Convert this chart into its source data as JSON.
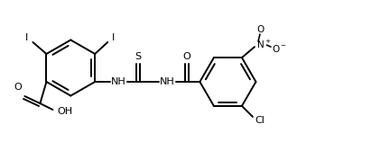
{
  "bg": "#ffffff",
  "lc": "#000000",
  "lw": 1.4,
  "fs": 8.0,
  "fw": 4.32,
  "fh": 1.58,
  "dpi": 100,
  "xlim": [
    0.0,
    8.6
  ],
  "ylim": [
    0.3,
    3.2
  ]
}
